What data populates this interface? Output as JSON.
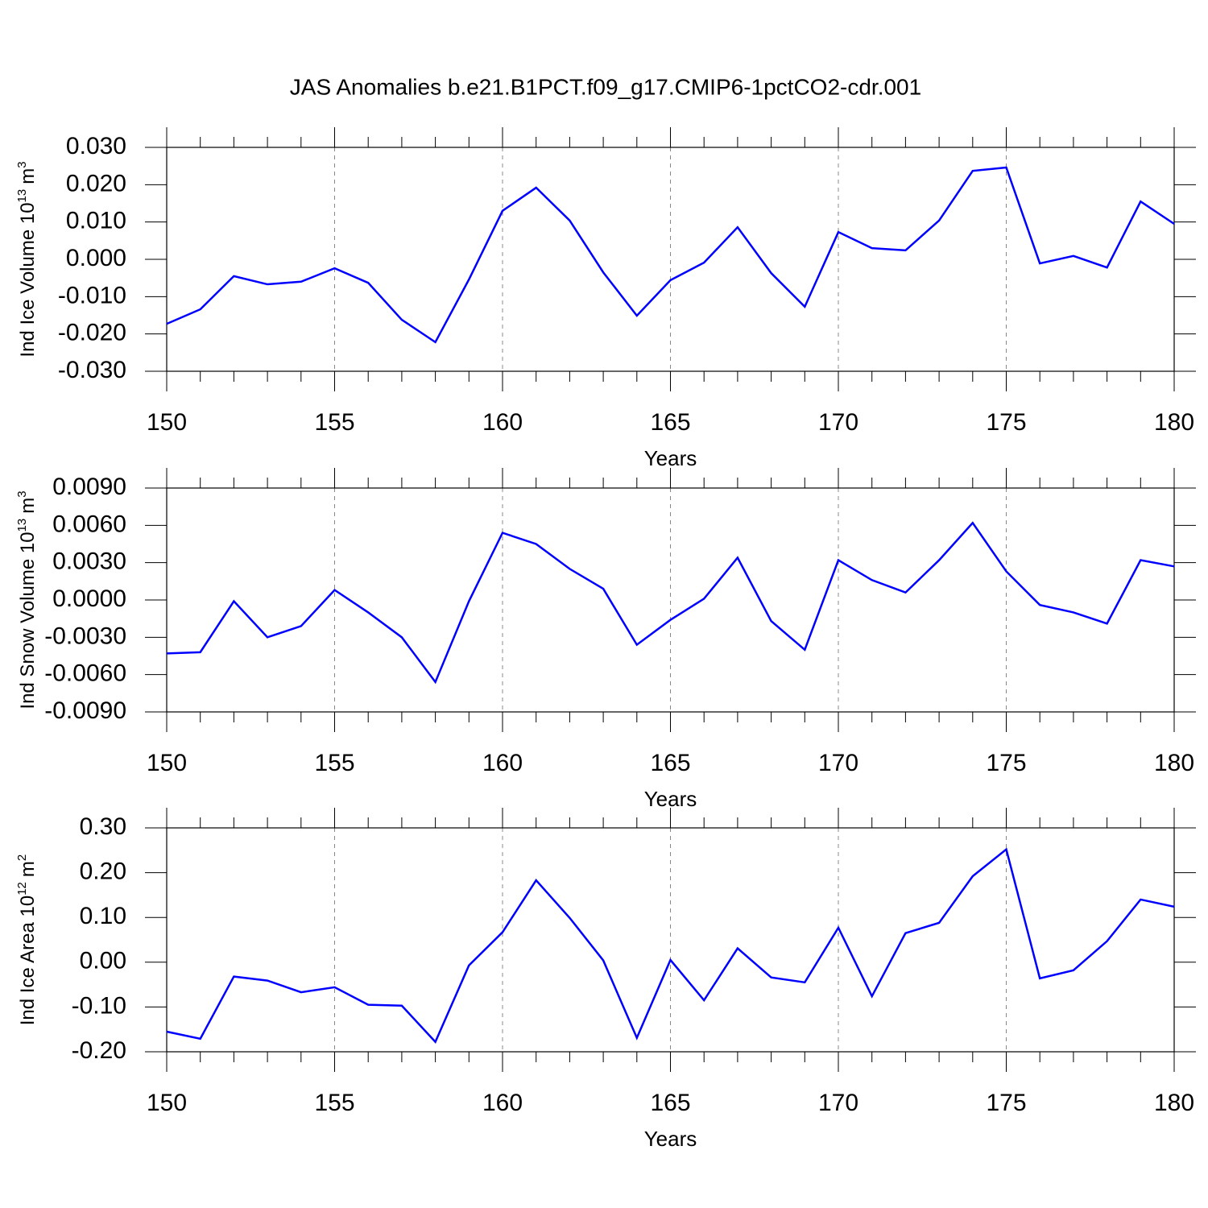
{
  "chart_data": [
    {
      "type": "line",
      "title": "JAS Anomalies b.e21.B1PCT.f09_g17.CMIP6-1pctCO2-cdr.001",
      "ylabel": "Ind Ice Volume 10",
      "ylabel_exponent": "13",
      "ylabel_unit": "m",
      "ylabel_unit_exponent": "3",
      "xlabel": "Years",
      "x": [
        150,
        151,
        152,
        153,
        154,
        155,
        156,
        157,
        158,
        159,
        160,
        161,
        162,
        163,
        164,
        165,
        166,
        167,
        168,
        169,
        170,
        171,
        172,
        173,
        174,
        175,
        176,
        177,
        178,
        179,
        180
      ],
      "values": [
        -0.0173,
        -0.0134,
        -0.0045,
        -0.0067,
        -0.006,
        -0.0024,
        -0.0063,
        -0.0162,
        -0.0222,
        -0.0054,
        0.013,
        0.0192,
        0.0104,
        -0.0035,
        -0.0151,
        -0.0056,
        -0.0009,
        0.0086,
        -0.0037,
        -0.0127,
        0.0073,
        0.003,
        0.0024,
        0.0104,
        0.0237,
        0.0246,
        -0.0011,
        0.0009,
        -0.0022,
        0.0155,
        0.0095
      ],
      "color": "#0000ff",
      "xlim": [
        150,
        180
      ],
      "xticks": [
        150,
        155,
        160,
        165,
        170,
        175,
        180
      ],
      "xgrid": true,
      "ylim": [
        -0.03,
        0.03
      ],
      "yticks": [
        {
          "value": -0.03,
          "label": "-0.030"
        },
        {
          "value": -0.02,
          "label": "-0.020"
        },
        {
          "value": -0.01,
          "label": "-0.010"
        },
        {
          "value": 0,
          "label": "0.000"
        },
        {
          "value": 0.01,
          "label": "0.010"
        },
        {
          "value": 0.02,
          "label": "0.020"
        },
        {
          "value": 0.03,
          "label": "0.030"
        }
      ]
    },
    {
      "type": "line",
      "ylabel": "Ind Snow Volume 10",
      "ylabel_exponent": "13",
      "ylabel_unit": "m",
      "ylabel_unit_exponent": "3",
      "xlabel": "Years",
      "x": [
        150,
        151,
        152,
        153,
        154,
        155,
        156,
        157,
        158,
        159,
        160,
        161,
        162,
        163,
        164,
        165,
        166,
        167,
        168,
        169,
        170,
        171,
        172,
        173,
        174,
        175,
        176,
        177,
        178,
        179,
        180
      ],
      "values": [
        -0.0043,
        -0.0042,
        -0.0001,
        -0.003,
        -0.0021,
        0.0008,
        -0.001,
        -0.003,
        -0.0066,
        -0.0001,
        0.0054,
        0.0045,
        0.0025,
        0.0009,
        -0.0036,
        -0.0016,
        0.0001,
        0.0034,
        -0.0017,
        -0.004,
        0.0032,
        0.0016,
        0.0006,
        0.0032,
        0.0062,
        0.0023,
        -0.0004,
        -0.001,
        -0.0019,
        0.0032,
        0.0027
      ],
      "color": "#0000ff",
      "xlim": [
        150,
        180
      ],
      "xticks": [
        150,
        155,
        160,
        165,
        170,
        175,
        180
      ],
      "xgrid": true,
      "ylim": [
        -0.009,
        0.009
      ],
      "yticks": [
        {
          "value": -0.009,
          "label": "-0.0090"
        },
        {
          "value": -0.006,
          "label": "-0.0060"
        },
        {
          "value": -0.003,
          "label": "-0.0030"
        },
        {
          "value": 0,
          "label": "0.0000"
        },
        {
          "value": 0.003,
          "label": "0.0030"
        },
        {
          "value": 0.006,
          "label": "0.0060"
        },
        {
          "value": 0.009,
          "label": "0.0090"
        }
      ]
    },
    {
      "type": "line",
      "ylabel": "Ind Ice Area 10",
      "ylabel_exponent": "12",
      "ylabel_unit": "m",
      "ylabel_unit_exponent": "2",
      "xlabel": "Years",
      "x": [
        150,
        151,
        152,
        153,
        154,
        155,
        156,
        157,
        158,
        159,
        160,
        161,
        162,
        163,
        164,
        165,
        166,
        167,
        168,
        169,
        170,
        171,
        172,
        173,
        174,
        175,
        176,
        177,
        178,
        179,
        180
      ],
      "values": [
        -0.155,
        -0.171,
        -0.032,
        -0.041,
        -0.067,
        -0.056,
        -0.095,
        -0.097,
        -0.178,
        -0.007,
        0.067,
        0.183,
        0.099,
        0.004,
        -0.169,
        0.005,
        -0.085,
        0.031,
        -0.034,
        -0.045,
        0.077,
        -0.076,
        0.065,
        0.088,
        0.192,
        0.252,
        -0.036,
        -0.018,
        0.047,
        0.14,
        0.124
      ],
      "color": "#0000ff",
      "xlim": [
        150,
        180
      ],
      "xticks": [
        150,
        155,
        160,
        165,
        170,
        175,
        180
      ],
      "xgrid": true,
      "ylim": [
        -0.2,
        0.3
      ],
      "yticks": [
        {
          "value": -0.2,
          "label": "-0.20"
        },
        {
          "value": -0.1,
          "label": "-0.10"
        },
        {
          "value": 0,
          "label": "0.00"
        },
        {
          "value": 0.1,
          "label": "0.10"
        },
        {
          "value": 0.2,
          "label": "0.20"
        },
        {
          "value": 0.3,
          "label": "0.30"
        }
      ]
    }
  ]
}
